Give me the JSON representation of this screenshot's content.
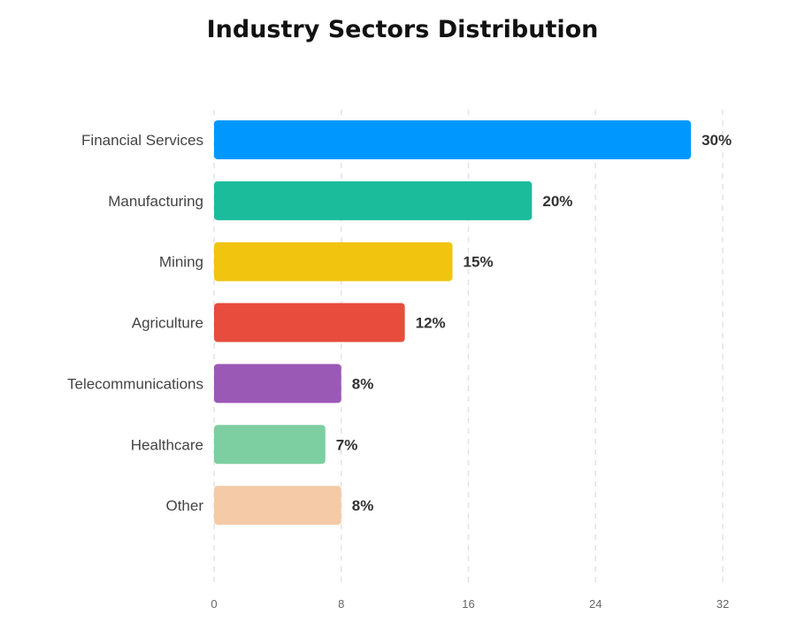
{
  "chart_data": {
    "type": "bar",
    "orientation": "horizontal",
    "title": "Industry Sectors Distribution",
    "categories": [
      "Financial Services",
      "Manufacturing",
      "Mining",
      "Agriculture",
      "Telecommunications",
      "Healthcare",
      "Other"
    ],
    "values": [
      30,
      20,
      15,
      12,
      8,
      7,
      8
    ],
    "value_labels": [
      "30%",
      "20%",
      "15%",
      "12%",
      "8%",
      "7%",
      "8%"
    ],
    "colors": [
      "#0098ff",
      "#1abc9c",
      "#f1c40f",
      "#e74c3c",
      "#9b59b6",
      "#7dcea0",
      "#f5cba7"
    ],
    "x_ticks": [
      "0",
      "8",
      "16",
      "24",
      "32"
    ],
    "xlim": [
      0,
      32
    ],
    "grid": "vertical-dashed",
    "legend": "none"
  }
}
